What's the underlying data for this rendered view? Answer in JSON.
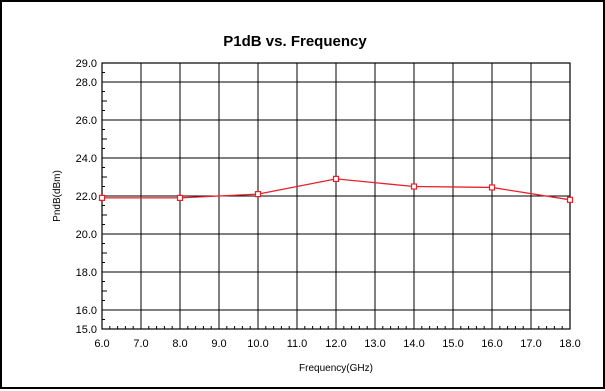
{
  "chart_data": {
    "type": "line",
    "title": "P1dB vs. Frequency",
    "xlabel": "Frequency(GHz)",
    "ylabel": "PndB(dBm)",
    "xlim": [
      6.0,
      18.0
    ],
    "ylim": [
      15.0,
      29.0
    ],
    "x_ticks": [
      "6.0",
      "7.0",
      "8.0",
      "9.0",
      "10.0",
      "11.0",
      "12.0",
      "13.0",
      "14.0",
      "15.0",
      "16.0",
      "17.0",
      "18.0"
    ],
    "y_ticks": [
      {
        "value": 15.0,
        "label": "15.0"
      },
      {
        "value": 16.0,
        "label": "16.0"
      },
      {
        "value": 18.0,
        "label": "18.0"
      },
      {
        "value": 20.0,
        "label": "20.0"
      },
      {
        "value": 22.0,
        "label": "22.0"
      },
      {
        "value": 24.0,
        "label": "24.0"
      },
      {
        "value": 26.0,
        "label": "26.0"
      },
      {
        "value": 28.0,
        "label": "28.0"
      },
      {
        "value": 29.0,
        "label": "29.0"
      }
    ],
    "grid": true,
    "series": [
      {
        "color": "#e8202a",
        "marker": "square",
        "points": [
          {
            "x": 6.0,
            "y": 21.9
          },
          {
            "x": 8.0,
            "y": 21.9
          },
          {
            "x": 10.0,
            "y": 22.1
          },
          {
            "x": 12.0,
            "y": 22.9
          },
          {
            "x": 14.0,
            "y": 22.5
          },
          {
            "x": 16.0,
            "y": 22.45
          },
          {
            "x": 18.0,
            "y": 21.8
          }
        ]
      }
    ]
  }
}
